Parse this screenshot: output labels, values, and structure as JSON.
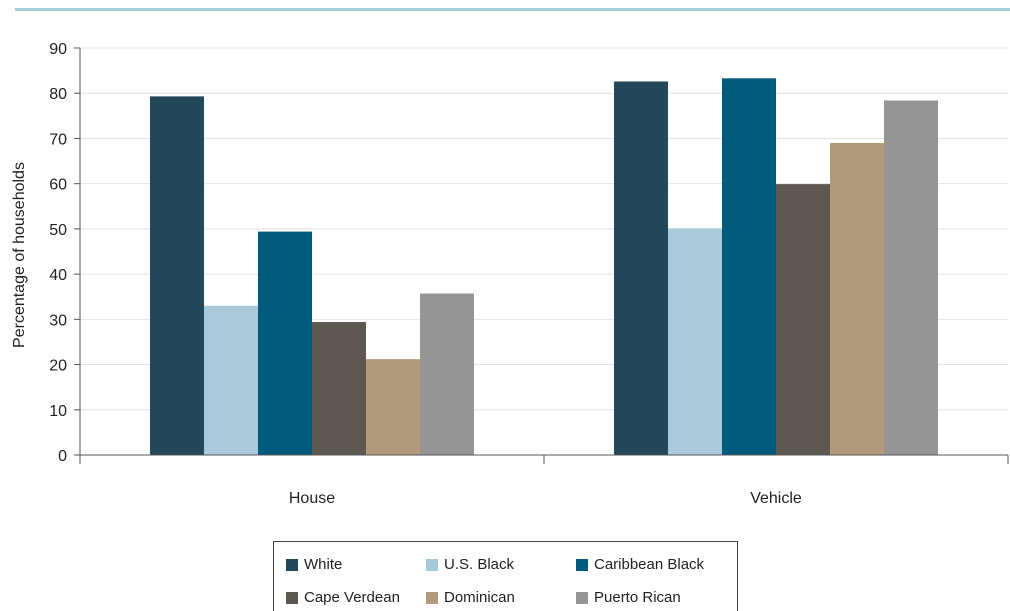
{
  "chart_data": {
    "type": "bar",
    "categories": [
      "House",
      "Vehicle"
    ],
    "series": [
      {
        "name": "White",
        "color": "#22485a",
        "values": [
          79.3,
          82.6
        ]
      },
      {
        "name": "U.S. Black",
        "color": "#a8cadb",
        "values": [
          33.0,
          50.1
        ]
      },
      {
        "name": "Caribbean Black",
        "color": "#035b7b",
        "values": [
          49.4,
          83.3
        ]
      },
      {
        "name": "Cape Verdean",
        "color": "#5d5851",
        "values": [
          29.4,
          59.9
        ]
      },
      {
        "name": "Dominican",
        "color": "#b19b7c",
        "values": [
          21.2,
          69.0
        ]
      },
      {
        "name": "Puerto Rican",
        "color": "#959595",
        "values": [
          35.7,
          78.4
        ]
      }
    ],
    "ylabel": "Percentage of households",
    "ylim": [
      0,
      90
    ],
    "yticks": [
      0,
      10,
      20,
      30,
      40,
      50,
      60,
      70,
      80,
      90
    ],
    "grid": true,
    "legend_position": "bottom"
  }
}
